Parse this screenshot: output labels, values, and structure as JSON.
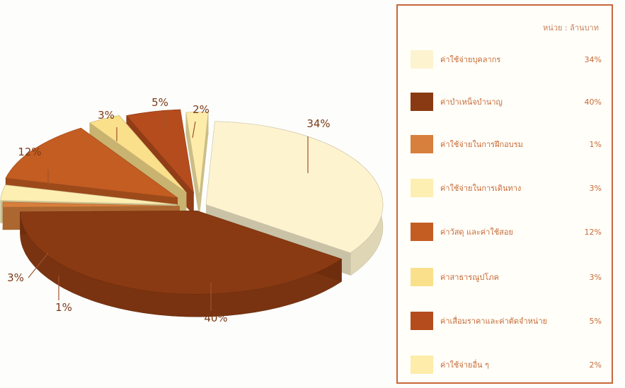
{
  "chart_data": {
    "type": "pie",
    "title": "",
    "legend_position": "right",
    "unit_note": "หน่วย : ล้านบาท",
    "slices": [
      {
        "label": "ค่าใช้จ่ายบุคลากร",
        "value": 34,
        "display": "34%",
        "color": "#fdf3cf"
      },
      {
        "label": "ค่าบำเหน็จบำนาญ",
        "value": 40,
        "display": "40%",
        "color": "#8a3a12"
      },
      {
        "label": "ค่าใช้จ่ายในการฝึกอบรม",
        "value": 1,
        "display": "1%",
        "color": "#d77f3c"
      },
      {
        "label": "ค่าใช้จ่ายในการเดินทาง",
        "value": 3,
        "display": "3%",
        "color": "#fdeeb2"
      },
      {
        "label": "ค่าวัสดุ และค่าใช้สอย",
        "value": 12,
        "display": "12%",
        "color": "#c45d22"
      },
      {
        "label": "ค่าสาธารณูปโภค",
        "value": 3,
        "display": "3%",
        "color": "#fbe08c"
      },
      {
        "label": "ค่าเสื่อมราคาและค่าตัดจำหน่าย",
        "value": 5,
        "display": "5%",
        "color": "#b54c1d"
      },
      {
        "label": "ค่าใช้จ่ายอื่น ๆ",
        "value": 2,
        "display": "2%",
        "color": "#fdecaa"
      }
    ]
  }
}
